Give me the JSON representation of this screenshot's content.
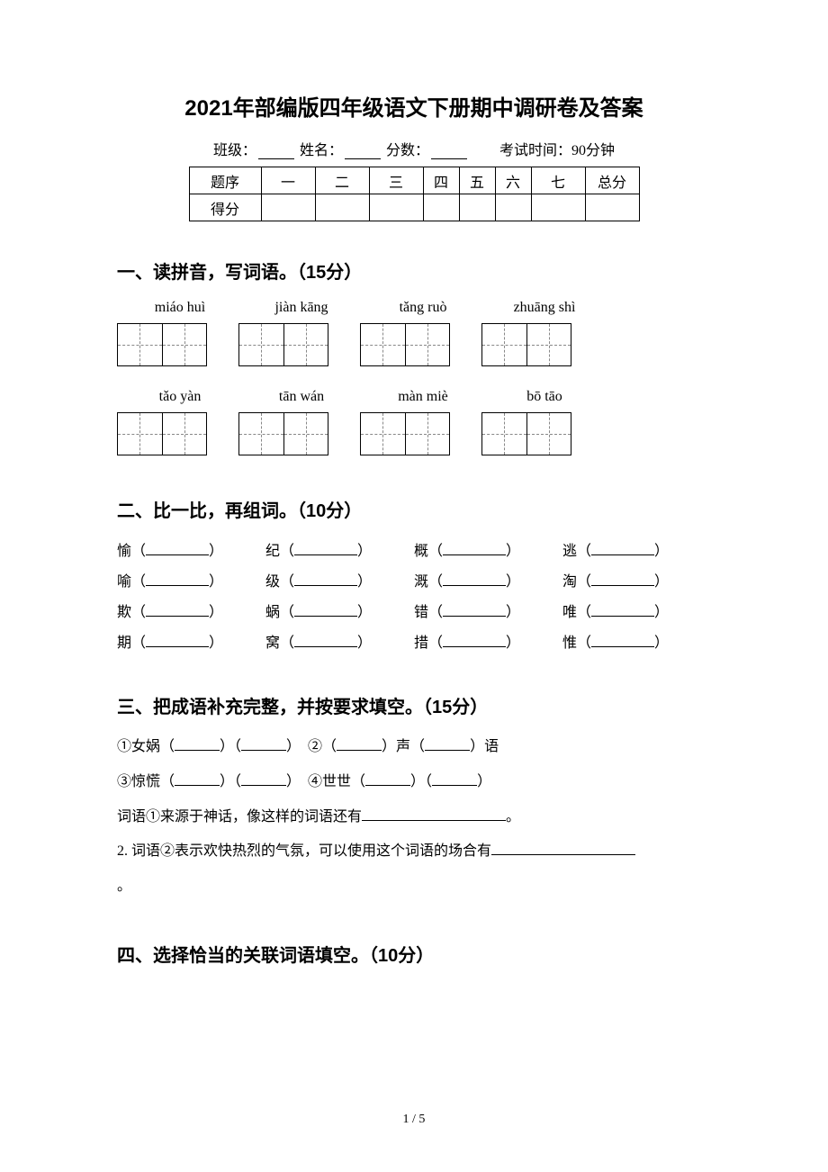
{
  "title": "2021年部编版四年级语文下册期中调研卷及答案",
  "header": {
    "class_label": "班级：",
    "name_label": "姓名：",
    "score_label": "分数：",
    "time_label": "考试时间：90分钟"
  },
  "score_table": {
    "row1_label": "题序",
    "row2_label": "得分",
    "cols": [
      "一",
      "二",
      "三",
      "四",
      "五",
      "六",
      "七",
      "总分"
    ]
  },
  "sections": {
    "s1": {
      "heading": "一、读拼音，写词语。（15分）",
      "pinyin_row1": [
        "miáo huì",
        "jiàn kāng",
        "tǎng ruò",
        "zhuāng shì"
      ],
      "pinyin_row2": [
        "tǎo yàn",
        "tān wán",
        "màn miè",
        "bō tāo"
      ]
    },
    "s2": {
      "heading": "二、比一比，再组词。（10分）",
      "items": [
        [
          "愉",
          "纪",
          "概",
          "逃"
        ],
        [
          "喻",
          "级",
          "溉",
          "淘"
        ],
        [
          "欺",
          "蜗",
          "错",
          "唯"
        ],
        [
          "期",
          "窝",
          "措",
          "惟"
        ]
      ]
    },
    "s3": {
      "heading": "三、把成语补充完整，并按要求填空。（15分）",
      "line1_a": "①女娲（",
      "line1_b": "）（",
      "line1_c": "）　②（",
      "line1_d": "）声（",
      "line1_e": "）语",
      "line2_a": "③惊慌（",
      "line2_b": "）（",
      "line2_c": "）　④世世（",
      "line2_d": "）（",
      "line2_e": "）",
      "line3_a": "词语①来源于神话，像这样的词语还有",
      "line3_b": "。",
      "line4_a": "2. 词语②表示欢快热烈的气氛，可以使用这个词语的场合有",
      "line5": "。"
    },
    "s4": {
      "heading": "四、选择恰当的关联词语填空。（10分）"
    }
  },
  "footer": "1 / 5"
}
